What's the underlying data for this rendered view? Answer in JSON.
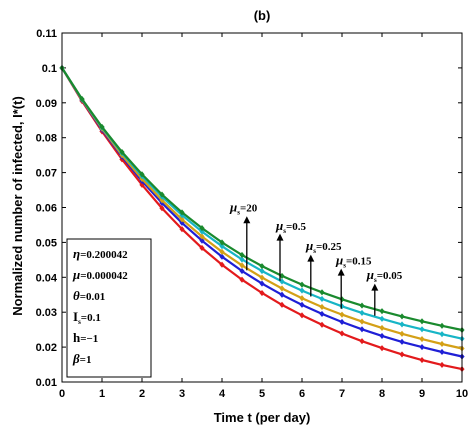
{
  "chart_data": {
    "type": "line",
    "title": "(b)",
    "xlabel": "Time t (per day)",
    "ylabel": "Normalized number of infected, I*(t)",
    "xlim": [
      0,
      10
    ],
    "ylim": [
      0.01,
      0.11
    ],
    "xticks": [
      0,
      1,
      2,
      3,
      4,
      5,
      6,
      7,
      8,
      9,
      10
    ],
    "yticks": [
      0.01,
      0.02,
      0.03,
      0.04,
      0.05,
      0.06,
      0.07,
      0.08,
      0.09,
      0.1,
      0.11
    ],
    "ytick_labels": [
      "0.01",
      "0.02",
      "0.03",
      "0.04",
      "0.05",
      "0.06",
      "0.07",
      "0.08",
      "0.09",
      "0.1",
      "0.11"
    ],
    "grid": false,
    "x": [
      0,
      0.5,
      1,
      1.5,
      2,
      2.5,
      3,
      3.5,
      4,
      4.5,
      5,
      5.5,
      6,
      6.5,
      7,
      7.5,
      8,
      8.5,
      9,
      9.5,
      10
    ],
    "series": [
      {
        "name": "μs=0.05",
        "color": "#e31a1c",
        "values": [
          0.1,
          0.0905,
          0.0818,
          0.0738,
          0.0665,
          0.0598,
          0.0538,
          0.0484,
          0.0436,
          0.0393,
          0.0355,
          0.0321,
          0.0291,
          0.0264,
          0.0239,
          0.0217,
          0.0197,
          0.0179,
          0.0163,
          0.0149,
          0.0137
        ]
      },
      {
        "name": "μs=0.15",
        "color": "#1f1fd6",
        "values": [
          0.1,
          0.0908,
          0.0823,
          0.0746,
          0.0676,
          0.0613,
          0.0556,
          0.0505,
          0.0459,
          0.0418,
          0.0382,
          0.035,
          0.0321,
          0.0295,
          0.0272,
          0.0251,
          0.0232,
          0.0215,
          0.02,
          0.0186,
          0.0173
        ]
      },
      {
        "name": "μs=0.25",
        "color": "#d4a017",
        "values": [
          0.1,
          0.0909,
          0.0826,
          0.075,
          0.0682,
          0.0621,
          0.0566,
          0.0517,
          0.0473,
          0.0434,
          0.0399,
          0.0368,
          0.034,
          0.0315,
          0.0293,
          0.0273,
          0.0255,
          0.0238,
          0.0223,
          0.0209,
          0.0196
        ]
      },
      {
        "name": "μs=0.5",
        "color": "#17b5c6",
        "values": [
          0.1,
          0.091,
          0.0829,
          0.0756,
          0.069,
          0.0631,
          0.0578,
          0.0531,
          0.0489,
          0.0451,
          0.0418,
          0.0388,
          0.0362,
          0.0338,
          0.0317,
          0.0298,
          0.0281,
          0.0265,
          0.0251,
          0.0237,
          0.0224
        ]
      },
      {
        "name": "μs=20",
        "color": "#1a8a2e",
        "values": [
          0.1,
          0.0911,
          0.0831,
          0.0759,
          0.0695,
          0.0637,
          0.0586,
          0.0541,
          0.05,
          0.0464,
          0.0432,
          0.0404,
          0.0379,
          0.0357,
          0.0337,
          0.0319,
          0.0303,
          0.0288,
          0.0274,
          0.0261,
          0.0249
        ]
      }
    ],
    "annotations": [
      {
        "label": "μs=20",
        "sub": "s",
        "sym": "μ",
        "rest": "=20",
        "arrow_x": 4.62,
        "arrow_y_from": 0.042,
        "arrow_y_to": 0.0575,
        "text_x": 4.3,
        "text_y": 0.0588
      },
      {
        "label": "μs=0.5",
        "sub": "s",
        "sym": "μ",
        "rest": "=0.5",
        "arrow_x": 5.45,
        "arrow_y_from": 0.039,
        "arrow_y_to": 0.0525,
        "text_x": 5.45,
        "text_y": 0.0535
      },
      {
        "label": "μs=0.25",
        "sub": "s",
        "sym": "μ",
        "rest": "=0.25",
        "arrow_x": 6.22,
        "arrow_y_from": 0.0345,
        "arrow_y_to": 0.0465,
        "text_x": 6.2,
        "text_y": 0.0478
      },
      {
        "label": "μs=0.15",
        "sub": "s",
        "sym": "μ",
        "rest": "=0.15",
        "arrow_x": 6.98,
        "arrow_y_from": 0.031,
        "arrow_y_to": 0.0425,
        "text_x": 6.95,
        "text_y": 0.0437
      },
      {
        "label": "μs=0.05",
        "sub": "s",
        "sym": "μ",
        "rest": "=0.05",
        "arrow_x": 7.82,
        "arrow_y_from": 0.029,
        "arrow_y_to": 0.0382,
        "text_x": 7.72,
        "text_y": 0.0395
      }
    ],
    "parameters": [
      "η=0.200042",
      "μ=0.000042",
      "θ=0.01",
      "Is=0.1",
      "h=−1",
      "β=1"
    ]
  },
  "params_box": {
    "lines": [
      {
        "sym": "η",
        "rest": "=0.200042"
      },
      {
        "sym": "μ",
        "rest": "=0.000042"
      },
      {
        "sym": "θ",
        "rest": "=0.01"
      },
      {
        "sym": "I",
        "sub": "s",
        "rest": "=0.1"
      },
      {
        "sym": "h",
        "rest": "=−1"
      },
      {
        "sym": "β",
        "rest": "=1"
      }
    ]
  }
}
